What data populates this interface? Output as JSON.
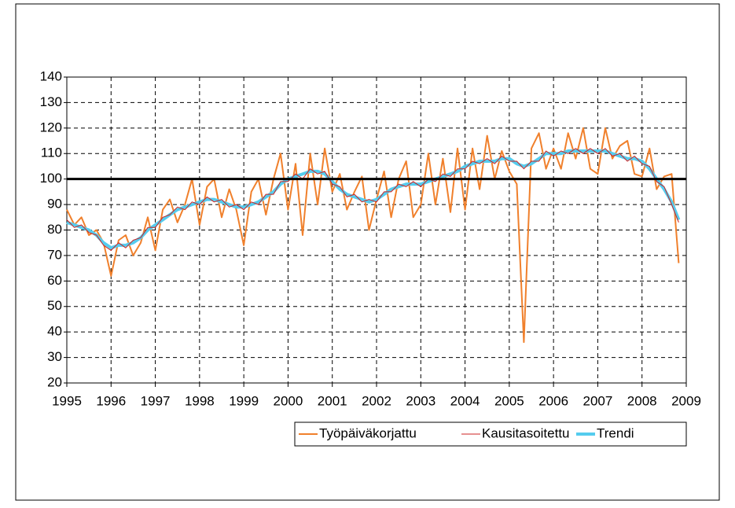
{
  "chart_data": {
    "type": "line",
    "x": [
      1995,
      1995.17,
      1995.33,
      1995.5,
      1995.67,
      1995.83,
      1996,
      1996.17,
      1996.33,
      1996.5,
      1996.67,
      1996.83,
      1997,
      1997.17,
      1997.33,
      1997.5,
      1997.67,
      1997.83,
      1998,
      1998.17,
      1998.33,
      1998.5,
      1998.67,
      1998.83,
      1999,
      1999.17,
      1999.33,
      1999.5,
      1999.67,
      1999.83,
      2000,
      2000.17,
      2000.33,
      2000.5,
      2000.67,
      2000.83,
      2001,
      2001.17,
      2001.33,
      2001.5,
      2001.67,
      2001.83,
      2002,
      2002.17,
      2002.33,
      2002.5,
      2002.67,
      2002.83,
      2003,
      2003.17,
      2003.33,
      2003.5,
      2003.67,
      2003.83,
      2004,
      2004.17,
      2004.33,
      2004.5,
      2004.67,
      2004.83,
      2005,
      2005.17,
      2005.33,
      2005.5,
      2005.67,
      2005.83,
      2006,
      2006.17,
      2006.33,
      2006.5,
      2006.67,
      2006.83,
      2007,
      2007.17,
      2007.33,
      2007.5,
      2007.67,
      2007.83,
      2008,
      2008.17,
      2008.33,
      2008.5,
      2008.67,
      2008.83
    ],
    "series": [
      {
        "name": "Työpäiväkorjattu",
        "color": "#f0802c",
        "width": 2,
        "values": [
          88,
          82,
          85,
          78,
          80,
          75,
          62,
          76,
          78,
          70,
          75,
          85,
          72,
          88,
          92,
          83,
          90,
          100,
          82,
          97,
          100,
          85,
          96,
          88,
          74,
          95,
          100,
          86,
          100,
          110,
          88,
          106,
          78,
          110,
          90,
          112,
          95,
          102,
          88,
          95,
          101,
          80,
          92,
          103,
          85,
          100,
          107,
          85,
          90,
          110,
          90,
          108,
          87,
          112,
          88,
          112,
          96,
          117,
          100,
          111,
          103,
          98,
          36,
          112,
          118,
          104,
          112,
          104,
          118,
          108,
          120,
          104,
          102,
          120,
          108,
          113,
          115,
          102,
          101,
          112,
          96,
          101,
          102,
          67
        ]
      },
      {
        "name": "Trendi",
        "color": "#55ccee",
        "width": 4,
        "values": [
          83,
          82,
          81,
          80,
          78,
          75,
          73,
          74,
          74,
          75,
          77,
          80,
          82,
          84,
          86,
          88,
          89,
          90,
          91,
          92,
          92,
          91,
          90,
          89,
          89,
          90,
          91,
          93,
          95,
          98,
          100,
          101,
          102,
          103,
          103,
          102,
          99,
          96,
          94,
          93,
          92,
          91,
          92,
          94,
          96,
          97,
          98,
          98,
          98,
          99,
          100,
          101,
          102,
          103,
          105,
          106,
          107,
          107,
          107,
          108,
          108,
          106,
          105,
          106,
          108,
          110,
          110,
          110,
          111,
          111,
          111,
          111,
          111,
          111,
          110,
          109,
          108,
          108,
          107,
          104,
          100,
          96,
          91,
          84
        ]
      },
      {
        "name": "Kausitasoitettu",
        "color": "#cc2222",
        "width": 1,
        "values": [
          84,
          81,
          82,
          79,
          78,
          74,
          72,
          75,
          73,
          76,
          77,
          81,
          81,
          85,
          86,
          89,
          88,
          91,
          90,
          93,
          91,
          92,
          89,
          90,
          88,
          91,
          90,
          94,
          94,
          99,
          99,
          102,
          100,
          104,
          102,
          103,
          98,
          97,
          93,
          94,
          91,
          92,
          91,
          95,
          95,
          98,
          97,
          99,
          97,
          100,
          99,
          102,
          101,
          104,
          104,
          107,
          106,
          108,
          106,
          109,
          107,
          107,
          104,
          107,
          107,
          111,
          109,
          111,
          110,
          112,
          110,
          112,
          110,
          112,
          109,
          110,
          107,
          109,
          106,
          105,
          99,
          97,
          90,
          83
        ]
      }
    ],
    "legend_order": [
      "Työpäiväkorjattu",
      "Kausitasoitettu",
      "Trendi"
    ],
    "reference_line": 100,
    "xlim": [
      1995,
      2009
    ],
    "xticks": [
      1995,
      1996,
      1997,
      1998,
      1999,
      2000,
      2001,
      2002,
      2003,
      2004,
      2005,
      2006,
      2007,
      2008,
      2009
    ],
    "ylim": [
      20,
      140
    ],
    "yticks": [
      20,
      30,
      40,
      50,
      60,
      70,
      80,
      90,
      100,
      110,
      120,
      130,
      140
    ],
    "grid": true
  }
}
